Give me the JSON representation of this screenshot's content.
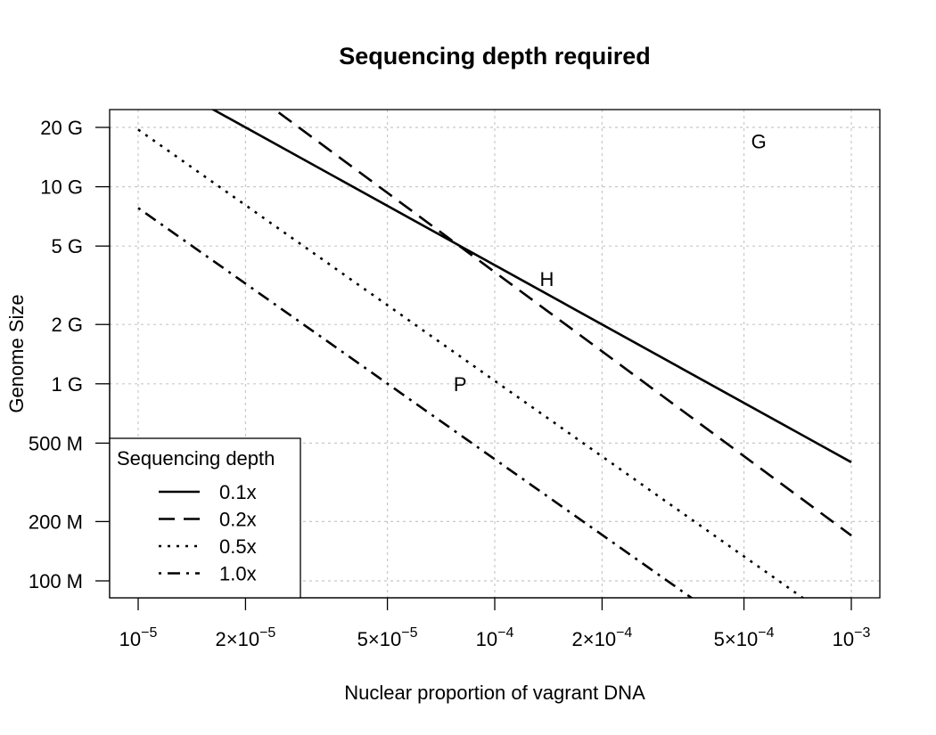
{
  "chart_data": {
    "type": "line",
    "title": "Sequencing depth required",
    "xlabel": "Nuclear proportion of vagrant DNA",
    "ylabel": "Genome Size",
    "xscale": "log",
    "yscale": "log",
    "xlim": [
      1e-05,
      0.001
    ],
    "ylim": [
      80000000,
      24000000000
    ],
    "grid": true,
    "x_ticks": [
      {
        "value": 1e-05,
        "base": "10",
        "exp": "−5"
      },
      {
        "value": 2e-05,
        "mult": "2×",
        "base": "10",
        "exp": "−5"
      },
      {
        "value": 5e-05,
        "mult": "5×",
        "base": "10",
        "exp": "−5"
      },
      {
        "value": 0.0001,
        "base": "10",
        "exp": "−4"
      },
      {
        "value": 0.0002,
        "mult": "2×",
        "base": "10",
        "exp": "−4"
      },
      {
        "value": 0.0005,
        "mult": "5×",
        "base": "10",
        "exp": "−4"
      },
      {
        "value": 0.001,
        "base": "10",
        "exp": "−3"
      }
    ],
    "y_ticks": [
      {
        "value": 100000000,
        "label": "100 M"
      },
      {
        "value": 200000000,
        "label": "200 M"
      },
      {
        "value": 500000000,
        "label": "500 M"
      },
      {
        "value": 1000000000,
        "label": "1 G"
      },
      {
        "value": 2000000000,
        "label": "2 G"
      },
      {
        "value": 5000000000,
        "label": "5 G"
      },
      {
        "value": 10000000000,
        "label": "10 G"
      },
      {
        "value": 20000000000,
        "label": "20 G"
      }
    ],
    "series": [
      {
        "name": "0.1x",
        "dash": "solid",
        "x": [
          1e-05,
          0.001
        ],
        "y": [
          40000000000,
          400000000
        ]
      },
      {
        "name": "0.2x",
        "dash": "longdash",
        "x": [
          1e-05,
          0.001
        ],
        "y": [
          80000000000,
          170000000
        ]
      },
      {
        "name": "0.5x",
        "dash": "dotted",
        "x": [
          1e-05,
          0.001
        ],
        "y": [
          19500000000,
          55000000
        ]
      },
      {
        "name": "1.0x",
        "dash": "dotdash",
        "x": [
          1e-05,
          0.001
        ],
        "y": [
          7800000000,
          22000000
        ]
      }
    ],
    "annotations": [
      {
        "text": "G",
        "x": 0.00055,
        "y": 17000000000
      },
      {
        "text": "H",
        "x": 0.00014,
        "y": 3400000000
      },
      {
        "text": "P",
        "x": 8e-05,
        "y": 1000000000
      }
    ],
    "legend": {
      "title": "Sequencing depth",
      "placement": "bottom-left"
    }
  }
}
